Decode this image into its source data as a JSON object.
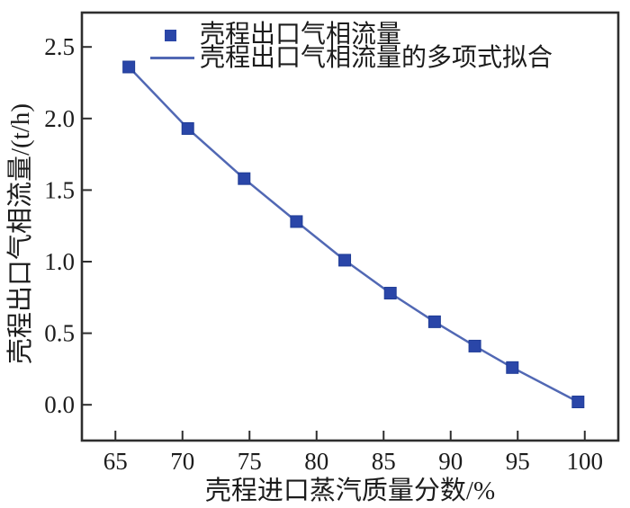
{
  "chart_data": {
    "type": "line",
    "title": "",
    "xlabel": "壳程进口蒸汽质量分数/%",
    "ylabel": "壳程出口气相流量/(t/h)",
    "x": [
      66.0,
      70.4,
      74.6,
      78.5,
      82.1,
      85.5,
      88.8,
      91.8,
      94.6,
      99.5
    ],
    "series": [
      {
        "name": "壳程出口气相流量",
        "kind": "scatter",
        "marker": "square",
        "values": [
          2.36,
          1.93,
          1.58,
          1.28,
          1.01,
          0.78,
          0.58,
          0.41,
          0.26,
          0.02
        ],
        "color": "#2a46a8"
      },
      {
        "name": "壳程出口气相流量的多项式拟合",
        "kind": "line",
        "values": [
          2.36,
          1.93,
          1.58,
          1.28,
          1.01,
          0.78,
          0.58,
          0.41,
          0.26,
          0.02
        ],
        "color": "#5168b4"
      }
    ],
    "xlim": [
      62.5,
      102.5
    ],
    "ylim": [
      -0.25,
      2.74
    ],
    "xticks": [
      "65",
      "70",
      "75",
      "80",
      "85",
      "90",
      "95",
      "100"
    ],
    "yticks": [
      "0.0",
      "0.5",
      "1.0",
      "1.5",
      "2.0",
      "2.5"
    ],
    "grid": false,
    "legend_position": "top-left-inside"
  },
  "legend": {
    "items": [
      {
        "label": "壳程出口气相流量",
        "swatch": "square-marker"
      },
      {
        "label": "壳程出口气相流量的多项式拟合",
        "swatch": "line"
      }
    ]
  },
  "colors": {
    "marker": "#2a46a8",
    "marker_edge": "#1f3c96",
    "fit_line": "#5168b4",
    "axis": "#2e2e2e",
    "text": "#1c1c1c",
    "background": "#ffffff"
  }
}
